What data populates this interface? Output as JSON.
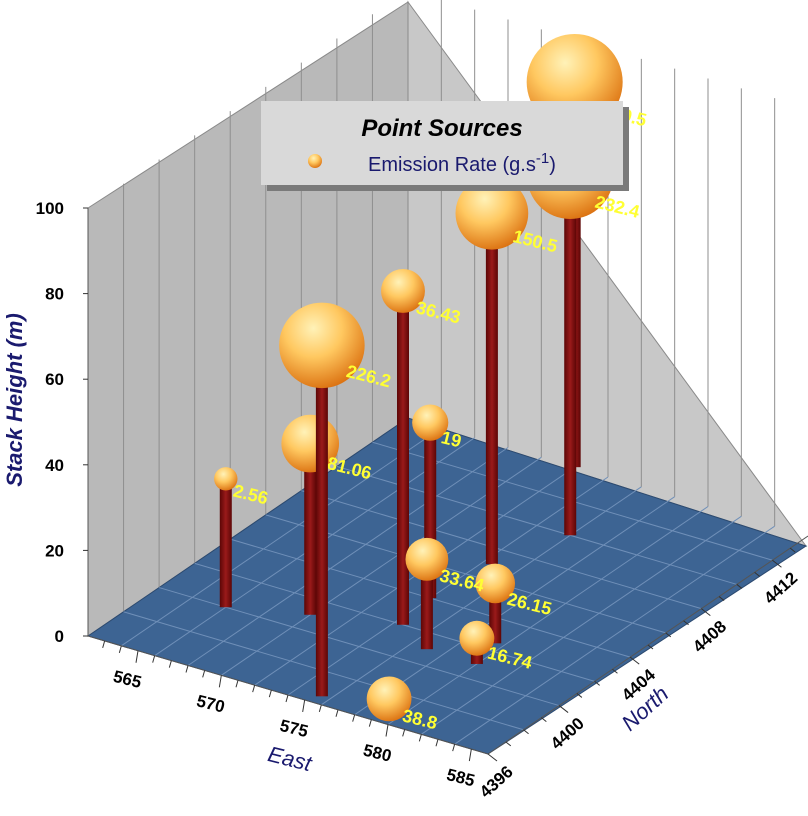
{
  "chart_data": {
    "type": "scatter3d",
    "legend": {
      "title": "Point Sources",
      "item_label": "Emission Rate (g.s",
      "item_sup": "-1",
      "item_close": ")",
      "placement": "top-center"
    },
    "axes": {
      "x": {
        "title": "East",
        "ticks": [
          "565",
          "570",
          "575",
          "580",
          "585"
        ],
        "range": [
          562,
          586
        ]
      },
      "y": {
        "title": "North",
        "ticks": [
          "4396",
          "4400",
          "4404",
          "4408",
          "4412"
        ],
        "range": [
          4396,
          4414
        ]
      },
      "z": {
        "title": "Stack Height (m)",
        "ticks": [
          "0",
          "20",
          "40",
          "60",
          "80",
          "100"
        ],
        "range": [
          0,
          100
        ]
      }
    },
    "points": [
      {
        "east": 575.5,
        "north": 4396.5,
        "height": 82,
        "label": "226.2",
        "rate": 226.2
      },
      {
        "east": 574.5,
        "north": 4402,
        "height": 78,
        "label": "36.43",
        "rate": 36.43
      },
      {
        "east": 566,
        "north": 4400,
        "height": 30,
        "label": "2.56",
        "rate": 2.56
      },
      {
        "east": 570,
        "north": 4401,
        "height": 40,
        "label": "81.06",
        "rate": 81.06
      },
      {
        "east": 574,
        "north": 4404,
        "height": 41,
        "label": "19",
        "rate": 19
      },
      {
        "east": 577,
        "north": 4401,
        "height": 21,
        "label": "33.64",
        "rate": 33.64
      },
      {
        "east": 579,
        "north": 4397,
        "height": 2,
        "label": "38.8",
        "rate": 38.8
      },
      {
        "east": 574.5,
        "north": 4407,
        "height": 82,
        "label": "150.5",
        "rate": 150.5
      },
      {
        "east": 579.5,
        "north": 4402.5,
        "height": 14,
        "label": "26.15",
        "rate": 26.15
      },
      {
        "east": 580,
        "north": 4401,
        "height": 6,
        "label": "16.74",
        "rate": 16.74
      },
      {
        "east": 576,
        "north": 4410,
        "height": 84,
        "label": "232.4",
        "rate": 232.4
      },
      {
        "east": 572,
        "north": 4414,
        "height": 90,
        "label": "299.5",
        "rate": 299.5
      }
    ],
    "colors": {
      "floor": "#3d6493",
      "wall": "#b4b4b4",
      "stem": "#7a0c0c",
      "sphere_light": "#ffe9a0",
      "sphere_dark": "#e07a10",
      "label": "#ffff33",
      "title": "#1a1a6e"
    }
  }
}
